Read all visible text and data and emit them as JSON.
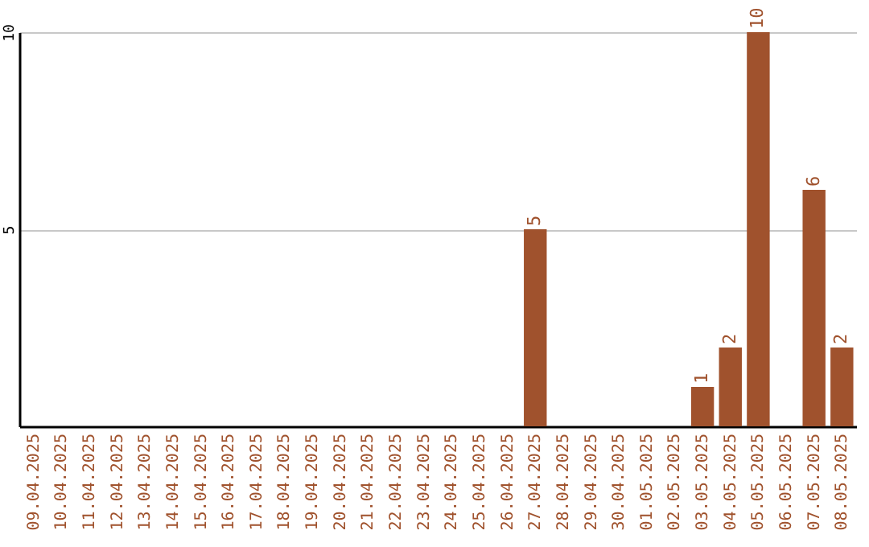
{
  "chart_data": {
    "type": "bar",
    "categories": [
      "09.04.2025",
      "10.04.2025",
      "11.04.2025",
      "12.04.2025",
      "13.04.2025",
      "14.04.2025",
      "15.04.2025",
      "16.04.2025",
      "17.04.2025",
      "18.04.2025",
      "19.04.2025",
      "20.04.2025",
      "21.04.2025",
      "22.04.2025",
      "23.04.2025",
      "24.04.2025",
      "25.04.2025",
      "26.04.2025",
      "27.04.2025",
      "28.04.2025",
      "29.04.2025",
      "30.04.2025",
      "01.05.2025",
      "02.05.2025",
      "03.05.2025",
      "04.05.2025",
      "05.05.2025",
      "06.05.2025",
      "07.05.2025",
      "08.05.2025"
    ],
    "values": [
      0,
      0,
      0,
      0,
      0,
      0,
      0,
      0,
      0,
      0,
      0,
      0,
      0,
      0,
      0,
      0,
      0,
      0,
      5,
      0,
      0,
      0,
      0,
      0,
      1,
      2,
      10,
      0,
      6,
      2
    ],
    "value_labels": [
      null,
      null,
      null,
      null,
      null,
      null,
      null,
      null,
      null,
      null,
      null,
      null,
      null,
      null,
      null,
      null,
      null,
      null,
      "5",
      null,
      null,
      null,
      null,
      null,
      "1",
      "2",
      "10",
      null,
      "6",
      "2"
    ],
    "color": "#a0522d",
    "ylim": [
      0,
      10
    ],
    "yticks": [
      5,
      10
    ],
    "grid": "y"
  }
}
